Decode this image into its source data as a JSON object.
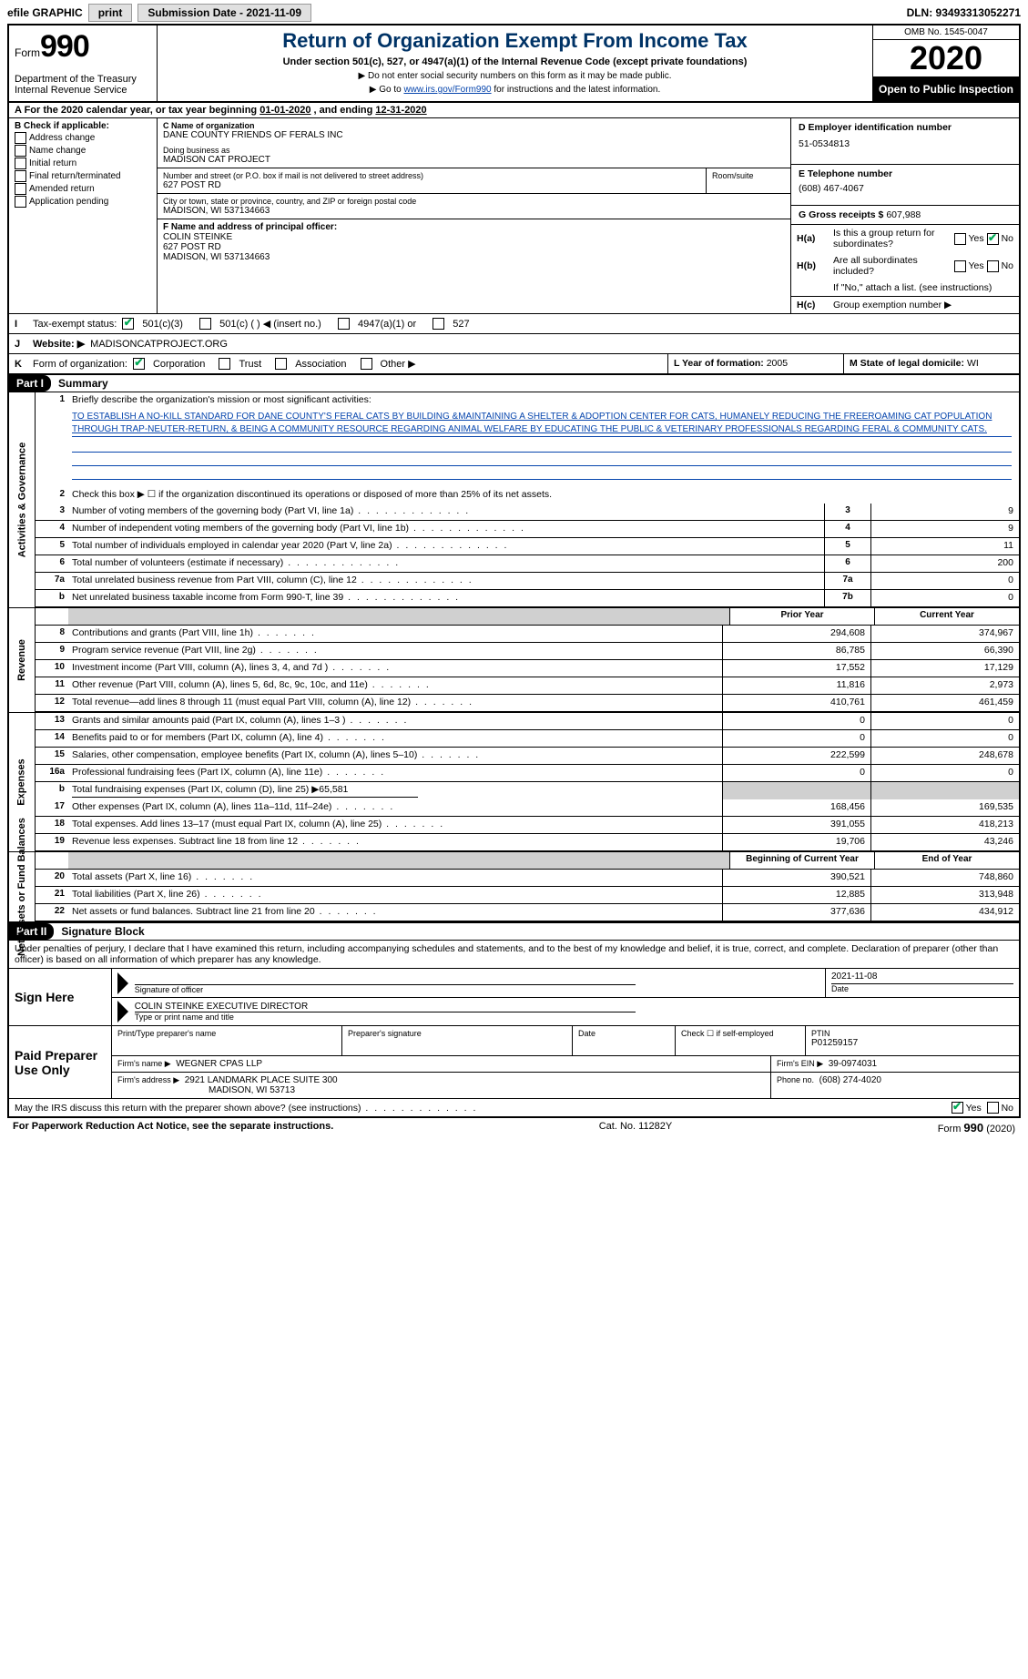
{
  "topbar": {
    "efile": "efile GRAPHIC",
    "print": "print",
    "submission": "Submission Date - 2021-11-09",
    "dln": "DLN: 93493313052271"
  },
  "header": {
    "form_label": "Form",
    "form_number": "990",
    "dept": "Department of the Treasury\nInternal Revenue Service",
    "title": "Return of Organization Exempt From Income Tax",
    "sub1": "Under section 501(c), 527, or 4947(a)(1) of the Internal Revenue Code (except private foundations)",
    "sub2": "▶ Do not enter social security numbers on this form as it may be made public.",
    "sub3_prefix": "▶ Go to ",
    "sub3_link": "www.irs.gov/Form990",
    "sub3_suffix": " for instructions and the latest information.",
    "omb": "OMB No. 1545-0047",
    "year": "2020",
    "open_public": "Open to Public Inspection"
  },
  "period": {
    "label_a": "A For the 2020 calendar year, or tax year beginning ",
    "begin": "01-01-2020",
    "mid": " , and ending ",
    "end": "12-31-2020"
  },
  "colB": {
    "heading": "B Check if applicable:",
    "items": [
      "Address change",
      "Name change",
      "Initial return",
      "Final return/terminated",
      "Amended return",
      "Application pending"
    ]
  },
  "colC": {
    "c_label": "C Name of organization",
    "org_name": "DANE COUNTY FRIENDS OF FERALS INC",
    "dba_label": "Doing business as",
    "dba": "MADISON CAT PROJECT",
    "street_label": "Number and street (or P.O. box if mail is not delivered to street address)",
    "room_label": "Room/suite",
    "street": "627 POST RD",
    "city_label": "City or town, state or province, country, and ZIP or foreign postal code",
    "city": "MADISON, WI  537134663",
    "f_label": "F Name and address of principal officer:",
    "officer_name": "COLIN STEINKE",
    "officer_street": "627 POST RD",
    "officer_city": "MADISON, WI  537134663"
  },
  "colD": {
    "d_label": "D Employer identification number",
    "ein": "51-0534813",
    "e_label": "E Telephone number",
    "phone": "(608) 467-4067",
    "g_label": "G Gross receipts $",
    "gross": "607,988",
    "ha_label": "H(a)",
    "ha_text": "Is this a group return for subordinates?",
    "hb_label": "H(b)",
    "hb_text": "Are all subordinates included?",
    "hb_note": "If \"No,\" attach a list. (see instructions)",
    "hc_label": "H(c)",
    "hc_text": "Group exemption number ▶",
    "yes": "Yes",
    "no": "No"
  },
  "rowI": {
    "label": "I",
    "text": "Tax-exempt status:",
    "opt1": "501(c)(3)",
    "opt2": "501(c) (  ) ◀ (insert no.)",
    "opt3": "4947(a)(1) or",
    "opt4": "527"
  },
  "rowJ": {
    "label": "J",
    "text": "Website: ▶",
    "value": "MADISONCATPROJECT.ORG"
  },
  "rowK": {
    "label": "K",
    "text": "Form of organization:",
    "opts": [
      "Corporation",
      "Trust",
      "Association",
      "Other ▶"
    ]
  },
  "rowL": {
    "l_label": "L Year of formation:",
    "l_val": "2005",
    "m_label": "M State of legal domicile:",
    "m_val": "WI"
  },
  "part1": {
    "header": "Part I",
    "title": "Summary"
  },
  "summary": {
    "line1_label": "1",
    "line1_text": "Briefly describe the organization's mission or most significant activities:",
    "mission": "TO ESTABLISH A NO-KILL STANDARD FOR DANE COUNTY'S FERAL CATS BY BUILDING &MAINTAINING A SHELTER & ADOPTION CENTER FOR CATS, HUMANELY REDUCING THE FREEROAMING CAT POPULATION THROUGH TRAP-NEUTER-RETURN, & BEING A COMMUNITY RESOURCE REGARDING ANIMAL WELFARE BY EDUCATING THE PUBLIC & VETERINARY PROFESSIONALS REGARDING FERAL & COMMUNITY CATS.",
    "line2_label": "2",
    "line2_text": "Check this box ▶ ☐ if the organization discontinued its operations or disposed of more than 25% of its net assets.",
    "prior_year": "Prior Year",
    "current_year": "Current Year",
    "begin_year": "Beginning of Current Year",
    "end_year": "End of Year"
  },
  "section_labels": {
    "gov": "Activities & Governance",
    "rev": "Revenue",
    "exp": "Expenses",
    "net": "Net Assets or Fund Balances"
  },
  "gov_lines": [
    {
      "n": "3",
      "d": "Number of voting members of the governing body (Part VI, line 1a)",
      "box": "3",
      "v": "9"
    },
    {
      "n": "4",
      "d": "Number of independent voting members of the governing body (Part VI, line 1b)",
      "box": "4",
      "v": "9"
    },
    {
      "n": "5",
      "d": "Total number of individuals employed in calendar year 2020 (Part V, line 2a)",
      "box": "5",
      "v": "11"
    },
    {
      "n": "6",
      "d": "Total number of volunteers (estimate if necessary)",
      "box": "6",
      "v": "200"
    },
    {
      "n": "7a",
      "d": "Total unrelated business revenue from Part VIII, column (C), line 12",
      "box": "7a",
      "v": "0"
    },
    {
      "n": "b",
      "d": "Net unrelated business taxable income from Form 990-T, line 39",
      "box": "7b",
      "v": "0"
    }
  ],
  "rev_lines": [
    {
      "n": "8",
      "d": "Contributions and grants (Part VIII, line 1h)",
      "p": "294,608",
      "c": "374,967"
    },
    {
      "n": "9",
      "d": "Program service revenue (Part VIII, line 2g)",
      "p": "86,785",
      "c": "66,390"
    },
    {
      "n": "10",
      "d": "Investment income (Part VIII, column (A), lines 3, 4, and 7d )",
      "p": "17,552",
      "c": "17,129"
    },
    {
      "n": "11",
      "d": "Other revenue (Part VIII, column (A), lines 5, 6d, 8c, 9c, 10c, and 11e)",
      "p": "11,816",
      "c": "2,973"
    },
    {
      "n": "12",
      "d": "Total revenue—add lines 8 through 11 (must equal Part VIII, column (A), line 12)",
      "p": "410,761",
      "c": "461,459"
    }
  ],
  "exp_lines": [
    {
      "n": "13",
      "d": "Grants and similar amounts paid (Part IX, column (A), lines 1–3 )",
      "p": "0",
      "c": "0"
    },
    {
      "n": "14",
      "d": "Benefits paid to or for members (Part IX, column (A), line 4)",
      "p": "0",
      "c": "0"
    },
    {
      "n": "15",
      "d": "Salaries, other compensation, employee benefits (Part IX, column (A), lines 5–10)",
      "p": "222,599",
      "c": "248,678"
    },
    {
      "n": "16a",
      "d": "Professional fundraising fees (Part IX, column (A), line 11e)",
      "p": "0",
      "c": "0"
    },
    {
      "n": "b",
      "d": "Total fundraising expenses (Part IX, column (D), line 25) ▶65,581",
      "p": "",
      "c": "",
      "noborder": true
    },
    {
      "n": "17",
      "d": "Other expenses (Part IX, column (A), lines 11a–11d, 11f–24e)",
      "p": "168,456",
      "c": "169,535"
    },
    {
      "n": "18",
      "d": "Total expenses. Add lines 13–17 (must equal Part IX, column (A), line 25)",
      "p": "391,055",
      "c": "418,213"
    },
    {
      "n": "19",
      "d": "Revenue less expenses. Subtract line 18 from line 12",
      "p": "19,706",
      "c": "43,246"
    }
  ],
  "net_lines": [
    {
      "n": "20",
      "d": "Total assets (Part X, line 16)",
      "p": "390,521",
      "c": "748,860"
    },
    {
      "n": "21",
      "d": "Total liabilities (Part X, line 26)",
      "p": "12,885",
      "c": "313,948"
    },
    {
      "n": "22",
      "d": "Net assets or fund balances. Subtract line 21 from line 20",
      "p": "377,636",
      "c": "434,912"
    }
  ],
  "part2": {
    "header": "Part II",
    "title": "Signature Block",
    "declaration": "Under penalties of perjury, I declare that I have examined this return, including accompanying schedules and statements, and to the best of my knowledge and belief, it is true, correct, and complete. Declaration of preparer (other than officer) is based on all information of which preparer has any knowledge."
  },
  "sign": {
    "sign_here": "Sign Here",
    "sig_officer": "Signature of officer",
    "date_label": "Date",
    "date_val": "2021-11-08",
    "name_title": "COLIN STEINKE  EXECUTIVE DIRECTOR",
    "type_name": "Type or print name and title"
  },
  "preparer": {
    "left": "Paid Preparer Use Only",
    "print_name_label": "Print/Type preparer's name",
    "sig_label": "Preparer's signature",
    "date_label": "Date",
    "check_label": "Check ☐ if self-employed",
    "ptin_label": "PTIN",
    "ptin": "P01259157",
    "firm_name_label": "Firm's name   ▶",
    "firm_name": "WEGNER CPAS LLP",
    "firm_ein_label": "Firm's EIN ▶",
    "firm_ein": "39-0974031",
    "firm_addr_label": "Firm's address ▶",
    "firm_addr1": "2921 LANDMARK PLACE SUITE 300",
    "firm_addr2": "MADISON, WI  53713",
    "phone_label": "Phone no.",
    "phone": "(608) 274-4020"
  },
  "discuss": {
    "text": "May the IRS discuss this return with the preparer shown above? (see instructions)",
    "yes": "Yes",
    "no": "No"
  },
  "footer": {
    "left": "For Paperwork Reduction Act Notice, see the separate instructions.",
    "mid": "Cat. No. 11282Y",
    "right_form": "Form",
    "right_num": "990",
    "right_year": "(2020)"
  }
}
